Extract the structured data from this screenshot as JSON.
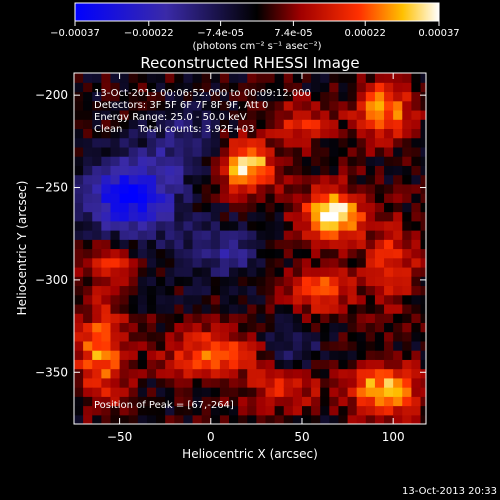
{
  "chart_data": {
    "type": "heatmap",
    "title": "Reconstructed RHESSI Image",
    "xlabel": "Heliocentric X (arcsec)",
    "ylabel": "Heliocentric Y (arcsec)",
    "xlim": [
      -75,
      118
    ],
    "ylim": [
      -378,
      -188
    ],
    "x_ticks": [
      -50,
      0,
      50,
      100
    ],
    "y_ticks": [
      -200,
      -250,
      -300,
      -350
    ],
    "colorbar": {
      "unit_label": "(photons cm⁻² s⁻¹ asec⁻²)",
      "range": [
        -0.00037,
        0.00037
      ],
      "tick_labels": [
        "-0.00037",
        "-0.00022",
        "-7.4e-05",
        "7.4e-05",
        "0.00022",
        "0.00037"
      ],
      "tick_values": [
        -0.00037,
        -0.00022,
        -7.4e-05,
        7.4e-05,
        0.00022,
        0.00037
      ]
    },
    "annotations": [
      "13-Oct-2013 00:06:52.000 to 00:09:12.000",
      "Detectors: 3F 5F 6F 7F 8F 9F, Att 0",
      "Energy Range: 25.0 - 50.0 keV",
      "Clean     Total counts: 3.92E+03"
    ],
    "peak_label": "Position of Peak = [67,-264]",
    "peak_position": [
      67,
      -264
    ],
    "peaks": [
      {
        "x": 20,
        "y": -238,
        "amp": 0.00033,
        "sx": 11,
        "sy": 10
      },
      {
        "x": 67,
        "y": -264,
        "amp": 0.00037,
        "sx": 12,
        "sy": 10
      },
      {
        "x": 95,
        "y": -208,
        "amp": 0.00026,
        "sx": 12,
        "sy": 12
      },
      {
        "x": 50,
        "y": -215,
        "amp": 0.00018,
        "sx": 10,
        "sy": 8
      },
      {
        "x": 60,
        "y": -305,
        "amp": 0.00022,
        "sx": 14,
        "sy": 9
      },
      {
        "x": 100,
        "y": -290,
        "amp": 0.00018,
        "sx": 10,
        "sy": 16
      },
      {
        "x": 95,
        "y": -360,
        "amp": 0.00032,
        "sx": 13,
        "sy": 10
      },
      {
        "x": 0,
        "y": -340,
        "amp": 0.00022,
        "sx": 18,
        "sy": 10
      },
      {
        "x": -60,
        "y": -340,
        "amp": 0.00026,
        "sx": 10,
        "sy": 18
      },
      {
        "x": -55,
        "y": -290,
        "amp": 0.00016,
        "sx": 10,
        "sy": 10
      },
      {
        "x": 40,
        "y": -360,
        "amp": 0.00016,
        "sx": 14,
        "sy": 8
      },
      {
        "x": -45,
        "y": -255,
        "amp": -0.00034,
        "sx": 18,
        "sy": 15
      },
      {
        "x": -15,
        "y": -225,
        "amp": -0.00014,
        "sx": 14,
        "sy": 12
      },
      {
        "x": 5,
        "y": -285,
        "amp": -0.00016,
        "sx": 16,
        "sy": 10
      },
      {
        "x": 45,
        "y": -335,
        "amp": -0.00012,
        "sx": 10,
        "sy": 8
      }
    ]
  },
  "footer": {
    "timestamp": "13-Oct-2013 20:33"
  }
}
